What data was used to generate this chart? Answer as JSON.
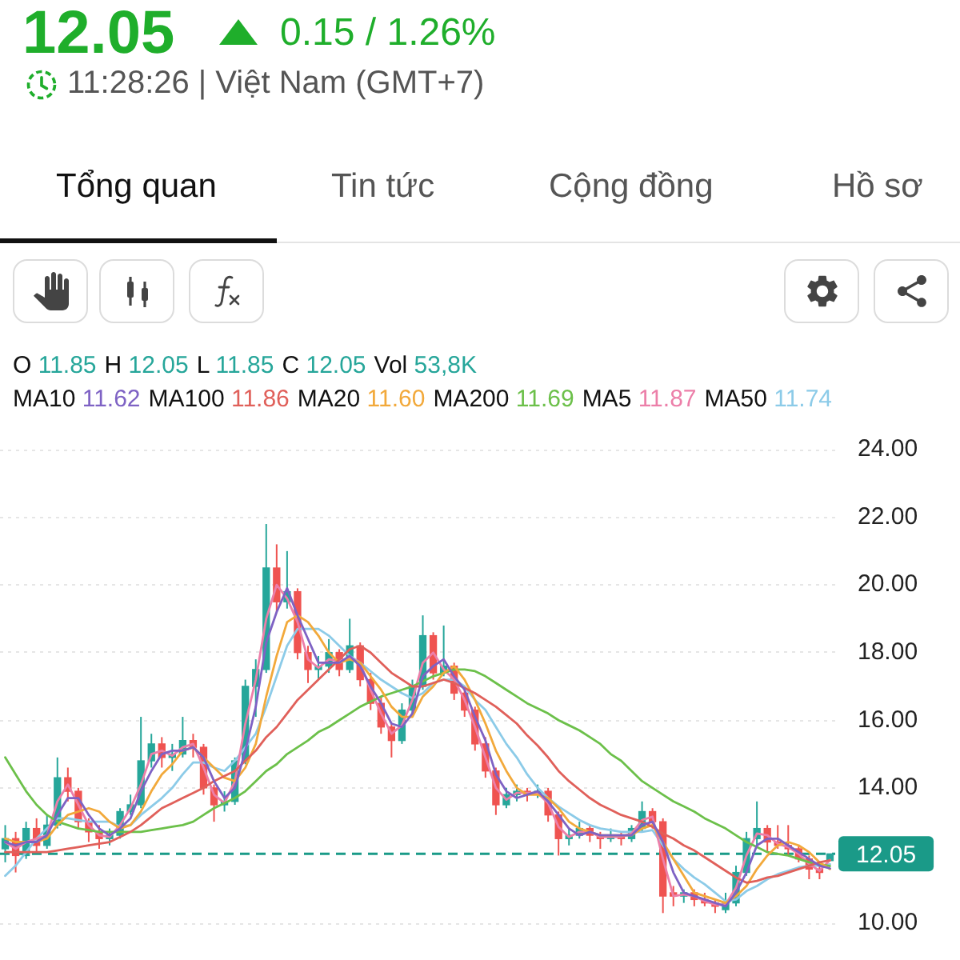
{
  "chart_data": {
    "type": "candlestick",
    "title": "12.05",
    "subtitle": "0.15 / 1.26%",
    "annotations": [
      "11:28:26 | Việt Nam (GMT+7)",
      "Tổng quan",
      "Tin tức",
      "Cộng đồng",
      "Hồ sơ",
      "O 11.85",
      "H 12.05",
      "L 11.85",
      "C 12.05",
      "Vol 53,8K",
      "MA10 11.62",
      "MA100 11.86",
      "MA20 11.60",
      "MA200 11.69",
      "MA5 11.87",
      "MA50 11.74"
    ],
    "categories": [
      null,
      null,
      null,
      null,
      null,
      null,
      null,
      null,
      null,
      null,
      null,
      null,
      null,
      null,
      null,
      null,
      null,
      null,
      null,
      null,
      null,
      null,
      null,
      null,
      null,
      null,
      null,
      null,
      null,
      null,
      null,
      null,
      null,
      null,
      null,
      null,
      null,
      null,
      null,
      null,
      null,
      null,
      null,
      null,
      null,
      null,
      null,
      null,
      null,
      null,
      null,
      null,
      null,
      null,
      null,
      null,
      null,
      null,
      null,
      null,
      null,
      null,
      null,
      null,
      null,
      null,
      null,
      null,
      null,
      null,
      null,
      null,
      null,
      null,
      null,
      null,
      null,
      null,
      null,
      null
    ],
    "ohlc": [
      [
        12.2,
        12.9,
        11.8,
        12.5
      ],
      [
        12.5,
        12.7,
        11.5,
        12.0
      ],
      [
        12.0,
        13.0,
        11.9,
        12.8
      ],
      [
        12.8,
        13.1,
        12.1,
        12.3
      ],
      [
        12.3,
        13.2,
        12.2,
        12.9
      ],
      [
        12.9,
        14.9,
        12.8,
        14.3
      ],
      [
        14.3,
        14.6,
        13.6,
        13.9
      ],
      [
        13.9,
        14.0,
        12.8,
        13.0
      ],
      [
        13.0,
        13.1,
        12.4,
        12.7
      ],
      [
        12.7,
        12.9,
        12.2,
        12.5
      ],
      [
        12.5,
        12.8,
        12.3,
        12.6
      ],
      [
        12.6,
        13.4,
        12.5,
        13.3
      ],
      [
        13.3,
        13.8,
        13.2,
        13.5
      ],
      [
        13.5,
        16.1,
        13.4,
        14.8
      ],
      [
        14.8,
        15.6,
        14.6,
        15.3
      ],
      [
        15.3,
        15.5,
        14.6,
        14.9
      ],
      [
        14.9,
        15.3,
        14.5,
        15.0
      ],
      [
        15.0,
        16.1,
        14.9,
        15.4
      ],
      [
        15.4,
        15.6,
        14.9,
        15.2
      ],
      [
        15.2,
        15.3,
        13.8,
        14.0
      ],
      [
        14.0,
        14.1,
        13.0,
        13.5
      ],
      [
        13.5,
        13.9,
        13.3,
        13.6
      ],
      [
        13.6,
        14.9,
        13.5,
        14.8
      ],
      [
        14.8,
        17.2,
        14.7,
        17.0
      ],
      [
        17.0,
        17.8,
        16.1,
        17.5
      ],
      [
        17.5,
        21.8,
        17.4,
        20.5
      ],
      [
        20.5,
        21.2,
        19.2,
        19.5
      ],
      [
        19.5,
        21.0,
        19.3,
        19.8
      ],
      [
        19.8,
        19.9,
        17.8,
        18.0
      ],
      [
        18.0,
        18.2,
        17.1,
        17.5
      ],
      [
        17.5,
        17.9,
        17.2,
        17.6
      ],
      [
        17.6,
        18.4,
        17.4,
        18.0
      ],
      [
        18.0,
        18.1,
        17.3,
        17.5
      ],
      [
        17.5,
        19.0,
        17.4,
        18.2
      ],
      [
        18.2,
        18.3,
        17.0,
        17.2
      ],
      [
        17.2,
        17.4,
        16.3,
        16.5
      ],
      [
        16.5,
        16.7,
        15.6,
        15.8
      ],
      [
        15.8,
        15.9,
        14.9,
        15.4
      ],
      [
        15.4,
        16.5,
        15.3,
        16.3
      ],
      [
        16.3,
        17.2,
        16.2,
        17.0
      ],
      [
        17.0,
        19.1,
        16.9,
        18.5
      ],
      [
        18.5,
        18.6,
        17.2,
        17.4
      ],
      [
        17.4,
        18.8,
        17.3,
        17.6
      ],
      [
        17.6,
        17.7,
        16.6,
        16.8
      ],
      [
        16.8,
        17.0,
        16.1,
        16.3
      ],
      [
        16.3,
        16.4,
        15.1,
        15.3
      ],
      [
        15.3,
        15.5,
        14.3,
        14.5
      ],
      [
        14.5,
        14.6,
        13.2,
        13.5
      ],
      [
        13.5,
        14.0,
        13.4,
        13.8
      ],
      [
        13.8,
        14.1,
        13.6,
        13.9
      ],
      [
        13.9,
        14.0,
        13.6,
        13.8
      ],
      [
        13.8,
        14.1,
        13.7,
        13.9
      ],
      [
        13.9,
        14.0,
        13.0,
        13.2
      ],
      [
        13.2,
        13.3,
        12.0,
        12.5
      ],
      [
        12.5,
        12.8,
        12.3,
        12.6
      ],
      [
        12.6,
        13.0,
        12.5,
        12.8
      ],
      [
        12.8,
        12.9,
        12.4,
        12.6
      ],
      [
        12.6,
        12.7,
        12.2,
        12.5
      ],
      [
        12.5,
        12.8,
        12.4,
        12.6
      ],
      [
        12.6,
        12.7,
        12.3,
        12.5
      ],
      [
        12.5,
        12.9,
        12.4,
        12.8
      ],
      [
        12.8,
        13.6,
        12.7,
        13.3
      ],
      [
        13.3,
        13.4,
        12.8,
        13.0
      ],
      [
        13.0,
        13.1,
        10.3,
        10.8
      ],
      [
        10.9,
        11.1,
        10.5,
        10.8
      ],
      [
        10.8,
        11.0,
        10.6,
        10.9
      ],
      [
        10.9,
        11.0,
        10.5,
        10.7
      ],
      [
        10.7,
        10.9,
        10.5,
        10.6
      ],
      [
        10.6,
        10.7,
        10.3,
        10.5
      ],
      [
        10.4,
        10.9,
        10.3,
        10.6
      ],
      [
        10.6,
        11.7,
        10.5,
        11.5
      ],
      [
        11.5,
        12.7,
        11.4,
        12.5
      ],
      [
        12.5,
        13.6,
        12.3,
        12.8
      ],
      [
        12.8,
        12.9,
        12.1,
        12.4
      ],
      [
        12.4,
        12.9,
        12.2,
        12.3
      ],
      [
        12.3,
        12.9,
        12.0,
        12.2
      ],
      [
        12.2,
        12.3,
        11.8,
        11.9
      ],
      [
        11.9,
        12.0,
        11.3,
        11.6
      ],
      [
        11.6,
        11.8,
        11.3,
        11.5
      ],
      [
        11.85,
        12.05,
        11.85,
        12.05
      ]
    ],
    "colors": [
      "#26a69a",
      "#ef5350",
      "#26a69a",
      "#ef5350",
      "#26a69a",
      "#26a69a",
      "#ef5350",
      "#ef5350",
      "#ef5350",
      "#ef5350",
      "#26a69a",
      "#26a69a",
      "#26a69a",
      "#26a69a",
      "#26a69a",
      "#ef5350",
      "#26a69a",
      "#26a69a",
      "#ef5350",
      "#ef5350",
      "#ef5350",
      "#26a69a",
      "#26a69a",
      "#26a69a",
      "#26a69a",
      "#26a69a",
      "#ef5350",
      "#26a69a",
      "#ef5350",
      "#ef5350",
      "#26a69a",
      "#26a69a",
      "#ef5350",
      "#26a69a",
      "#ef5350",
      "#ef5350",
      "#ef5350",
      "#ef5350",
      "#26a69a",
      "#26a69a",
      "#26a69a",
      "#ef5350",
      "#26a69a",
      "#ef5350",
      "#ef5350",
      "#ef5350",
      "#ef5350",
      "#ef5350",
      "#26a69a",
      "#26a69a",
      "#ef5350",
      "#26a69a",
      "#ef5350",
      "#ef5350",
      "#26a69a",
      "#26a69a",
      "#ef5350",
      "#ef5350",
      "#26a69a",
      "#ef5350",
      "#26a69a",
      "#26a69a",
      "#ef5350",
      "#ef5350",
      "#ef5350",
      "#26a69a",
      "#ef5350",
      "#ef5350",
      "#ef5350",
      "#26a69a",
      "#26a69a",
      "#26a69a",
      "#26a69a",
      "#ef5350",
      "#ef5350",
      "#ef5350",
      "#ef5350",
      "#ef5350",
      "#ef5350",
      "#26a69a"
    ],
    "series": [
      {
        "type": "line",
        "color": "#7e62c4",
        "values": [
          12.4,
          12.3,
          12.4,
          12.4,
          12.6,
          13.2,
          13.7,
          13.7,
          13.2,
          12.8,
          12.6,
          12.8,
          13.1,
          13.9,
          14.5,
          15.0,
          15.1,
          15.1,
          15.2,
          14.9,
          14.2,
          13.7,
          14.0,
          15.1,
          16.4,
          18.3,
          19.2,
          19.9,
          19.1,
          18.4,
          17.7,
          17.7,
          17.7,
          17.9,
          17.6,
          17.0,
          16.5,
          15.9,
          15.8,
          16.2,
          17.3,
          17.6,
          17.8,
          17.3,
          16.9,
          16.1,
          15.4,
          14.4,
          13.9,
          13.7,
          13.8,
          13.9,
          13.6,
          13.2,
          12.8,
          12.6,
          12.7,
          12.6,
          12.6,
          12.6,
          12.6,
          12.9,
          13.0,
          12.4,
          11.5,
          10.9,
          10.8,
          10.7,
          10.6,
          10.5,
          10.9,
          11.5,
          12.3,
          12.5,
          12.5,
          12.3,
          12.1,
          11.9,
          11.7,
          11.62
        ]
      },
      {
        "type": "line",
        "color": "#e0605a",
        "values": [
          12.1,
          12.1,
          12.1,
          12.1,
          12.1,
          12.15,
          12.2,
          12.25,
          12.3,
          12.35,
          12.4,
          12.55,
          12.7,
          12.9,
          13.15,
          13.4,
          13.55,
          13.7,
          13.85,
          14.0,
          14.2,
          14.35,
          14.5,
          14.8,
          15.1,
          15.5,
          15.8,
          16.2,
          16.6,
          16.9,
          17.2,
          17.5,
          17.8,
          18.1,
          18.2,
          18.0,
          17.7,
          17.4,
          17.2,
          17.0,
          17.0,
          17.1,
          17.2,
          17.1,
          16.95,
          16.8,
          16.6,
          16.4,
          16.15,
          15.9,
          15.55,
          15.25,
          14.9,
          14.5,
          14.2,
          13.95,
          13.7,
          13.5,
          13.35,
          13.2,
          13.1,
          13.0,
          12.85,
          12.65,
          12.5,
          12.3,
          12.15,
          11.95,
          11.75,
          11.55,
          11.35,
          11.2,
          11.25,
          11.35,
          11.4,
          11.5,
          11.6,
          11.7,
          11.8,
          11.86
        ]
      },
      {
        "type": "line",
        "color": "#f2a93b",
        "values": [
          12.5,
          12.4,
          12.4,
          12.4,
          12.5,
          12.9,
          13.2,
          13.3,
          13.4,
          13.3,
          13.0,
          12.8,
          12.9,
          13.3,
          13.9,
          14.4,
          14.7,
          15.1,
          15.2,
          14.9,
          14.6,
          14.3,
          14.2,
          14.6,
          15.3,
          16.7,
          17.9,
          18.9,
          19.1,
          18.9,
          18.5,
          18.0,
          17.7,
          17.8,
          17.7,
          17.3,
          16.9,
          16.4,
          16.1,
          16.1,
          16.7,
          17.0,
          17.4,
          17.6,
          17.2,
          16.6,
          15.9,
          15.1,
          14.5,
          14.0,
          13.8,
          13.8,
          13.7,
          13.4,
          13.0,
          12.8,
          12.7,
          12.6,
          12.6,
          12.6,
          12.6,
          12.8,
          12.9,
          12.4,
          11.9,
          11.4,
          10.9,
          10.8,
          10.7,
          10.6,
          10.8,
          11.1,
          11.6,
          12.0,
          12.3,
          12.4,
          12.3,
          12.1,
          11.8,
          11.6
        ]
      },
      {
        "type": "line",
        "color": "#6cc04a",
        "values": [
          14.9,
          14.4,
          13.9,
          13.5,
          13.2,
          13.0,
          12.9,
          12.8,
          12.75,
          12.7,
          12.7,
          12.7,
          12.7,
          12.7,
          12.75,
          12.8,
          12.85,
          12.9,
          13.0,
          13.2,
          13.4,
          13.55,
          13.7,
          13.9,
          14.2,
          14.5,
          14.7,
          15.0,
          15.2,
          15.4,
          15.65,
          15.8,
          16.0,
          16.2,
          16.4,
          16.55,
          16.7,
          16.8,
          16.9,
          17.0,
          17.15,
          17.3,
          17.4,
          17.5,
          17.5,
          17.45,
          17.3,
          17.1,
          16.9,
          16.7,
          16.5,
          16.35,
          16.2,
          16.0,
          15.85,
          15.7,
          15.5,
          15.3,
          15.0,
          14.8,
          14.5,
          14.2,
          14.0,
          13.8,
          13.6,
          13.45,
          13.3,
          13.1,
          12.95,
          12.8,
          12.6,
          12.4,
          12.25,
          12.1,
          12.05,
          12.0,
          11.9,
          11.8,
          11.75,
          11.69
        ]
      },
      {
        "type": "line",
        "color": "#ec7fa9",
        "values": [
          12.4,
          12.2,
          12.4,
          12.5,
          12.6,
          13.6,
          14.1,
          13.5,
          12.9,
          12.6,
          12.55,
          12.9,
          13.4,
          14.1,
          15.0,
          15.1,
          14.95,
          15.2,
          15.3,
          14.6,
          13.8,
          13.55,
          14.2,
          15.9,
          17.2,
          19.0,
          20.0,
          19.6,
          18.9,
          17.8,
          17.55,
          17.8,
          17.75,
          17.85,
          17.7,
          16.9,
          16.2,
          15.6,
          15.85,
          16.6,
          17.7,
          18.0,
          17.5,
          17.2,
          16.6,
          15.8,
          14.9,
          14.0,
          13.65,
          13.85,
          13.85,
          13.85,
          13.55,
          12.85,
          12.55,
          12.7,
          12.7,
          12.55,
          12.55,
          12.55,
          12.65,
          13.05,
          13.15,
          11.9,
          10.8,
          10.85,
          10.8,
          10.65,
          10.55,
          10.55,
          11.05,
          12.0,
          12.65,
          12.6,
          12.35,
          12.25,
          12.05,
          11.75,
          11.55,
          11.87
        ]
      },
      {
        "type": "line",
        "color": "#8ccbe8",
        "values": [
          11.4,
          11.7,
          12.1,
          12.5,
          12.8,
          13.1,
          13.1,
          13.05,
          13.0,
          13.0,
          13.0,
          12.85,
          12.9,
          13.2,
          13.45,
          13.7,
          14.0,
          14.4,
          14.75,
          14.75,
          14.6,
          14.5,
          14.8,
          15.2,
          15.6,
          16.4,
          17.3,
          18.2,
          18.7,
          18.7,
          18.7,
          18.5,
          18.2,
          17.9,
          17.7,
          17.45,
          17.2,
          17.0,
          16.8,
          16.65,
          16.8,
          17.1,
          17.2,
          17.2,
          17.0,
          16.6,
          16.3,
          15.8,
          15.3,
          14.9,
          14.4,
          14.0,
          13.7,
          13.45,
          13.25,
          13.05,
          12.9,
          12.8,
          12.75,
          12.7,
          12.7,
          12.7,
          12.75,
          12.3,
          11.9,
          11.6,
          11.35,
          11.15,
          10.9,
          10.65,
          10.7,
          10.95,
          11.1,
          11.3,
          11.45,
          11.55,
          11.65,
          11.7,
          11.7,
          11.74
        ]
      }
    ],
    "ylim": [
      10,
      24
    ],
    "yticks": [
      {
        "value": 10,
        "label": "10.00"
      },
      {
        "value": 14,
        "label": "14.00"
      },
      {
        "value": 16,
        "label": "16.00"
      },
      {
        "value": 18,
        "label": "18.00"
      },
      {
        "value": 20,
        "label": "20.00"
      },
      {
        "value": 22,
        "label": "22.00"
      },
      {
        "value": 24,
        "label": "24.00"
      }
    ],
    "ref_lines": [
      {
        "axis": "y",
        "value": 12.05,
        "label": "12.05",
        "color": "#1a9a88",
        "line_style": "dashed"
      }
    ],
    "grid": "y",
    "tick_labels": "y"
  }
}
